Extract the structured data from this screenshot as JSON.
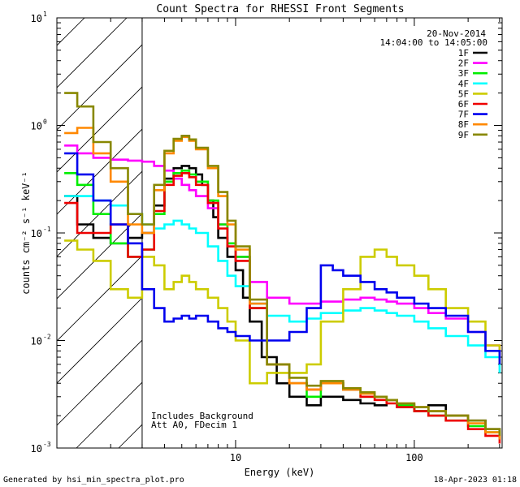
{
  "chart_data": {
    "type": "line",
    "title": "Count Spectra for RHESSI Front Segments",
    "xlabel": "Energy (keV)",
    "ylabel": "counts cm⁻² s⁻¹ keV⁻¹",
    "xscale": "log",
    "yscale": "log",
    "xlim": [
      1.0,
      310
    ],
    "ylim": [
      0.001,
      10
    ],
    "x_major_ticks": [
      {
        "value": 10,
        "label": "10"
      },
      {
        "value": 100,
        "label": "100"
      }
    ],
    "y_major_ticks": [
      {
        "value": 0.001,
        "base": "10",
        "exp": "-3"
      },
      {
        "value": 0.01,
        "base": "10",
        "exp": "-2"
      },
      {
        "value": 0.1,
        "base": "10",
        "exp": "-1"
      },
      {
        "value": 1,
        "base": "10",
        "exp": "0"
      },
      {
        "value": 10,
        "base": "10",
        "exp": "1"
      }
    ],
    "date_annotation": "20-Nov-2014",
    "time_annotation": "14:04:00 to 14:05:00",
    "notes": [
      "Includes Background",
      "Att A0, FDecim 1"
    ],
    "attenuator_region_upper_keV": 3.0,
    "series": [
      {
        "name": "1F",
        "color": "#000000",
        "x": [
          1.1,
          1.3,
          1.6,
          2.0,
          2.5,
          3.0,
          3.5,
          4.0,
          4.5,
          5.0,
          5.5,
          6.0,
          6.5,
          7.0,
          7.5,
          8.0,
          9.0,
          10,
          11,
          12,
          14,
          17,
          20,
          25,
          30,
          40,
          50,
          60,
          70,
          80,
          100,
          120,
          150,
          200,
          250,
          300
        ],
        "y": [
          0.22,
          0.12,
          0.09,
          0.08,
          0.09,
          0.1,
          0.18,
          0.32,
          0.4,
          0.42,
          0.4,
          0.35,
          0.28,
          0.2,
          0.14,
          0.09,
          0.06,
          0.045,
          0.025,
          0.015,
          0.007,
          0.004,
          0.003,
          0.0025,
          0.003,
          0.0028,
          0.0026,
          0.0025,
          0.0028,
          0.0024,
          0.0022,
          0.0025,
          0.002,
          0.0018,
          0.0015,
          0.0012
        ]
      },
      {
        "name": "2F",
        "color": "#ff00ff",
        "x": [
          1.1,
          1.3,
          1.6,
          2.0,
          2.5,
          3.0,
          3.5,
          4.0,
          4.5,
          5.0,
          5.5,
          6.0,
          7.0,
          8.0,
          9.0,
          10,
          12,
          15,
          20,
          25,
          30,
          40,
          50,
          60,
          70,
          80,
          100,
          120,
          150,
          200,
          250,
          300
        ],
        "y": [
          0.65,
          0.55,
          0.5,
          0.48,
          0.47,
          0.46,
          0.42,
          0.38,
          0.32,
          0.28,
          0.25,
          0.22,
          0.17,
          0.12,
          0.08,
          0.06,
          0.035,
          0.025,
          0.022,
          0.022,
          0.023,
          0.024,
          0.025,
          0.024,
          0.023,
          0.022,
          0.02,
          0.018,
          0.016,
          0.012,
          0.009,
          0.007
        ]
      },
      {
        "name": "3F",
        "color": "#00ee00",
        "x": [
          1.1,
          1.3,
          1.6,
          2.0,
          2.5,
          3.0,
          3.5,
          4.0,
          4.5,
          5.0,
          5.5,
          6.0,
          7.0,
          8.0,
          9.0,
          10,
          12,
          15,
          20,
          25,
          30,
          40,
          50,
          60,
          70,
          80,
          100,
          120,
          150,
          200,
          250,
          300
        ],
        "y": [
          0.36,
          0.28,
          0.15,
          0.08,
          0.06,
          0.07,
          0.15,
          0.3,
          0.36,
          0.38,
          0.35,
          0.3,
          0.2,
          0.12,
          0.08,
          0.06,
          0.02,
          0.006,
          0.004,
          0.003,
          0.004,
          0.0035,
          0.003,
          0.003,
          0.0028,
          0.0025,
          0.0022,
          0.002,
          0.0018,
          0.0016,
          0.0014,
          0.0012
        ]
      },
      {
        "name": "4F",
        "color": "#00ffff",
        "x": [
          1.1,
          1.3,
          1.6,
          2.0,
          2.5,
          3.0,
          3.5,
          4.0,
          4.5,
          5.0,
          5.5,
          6.0,
          7.0,
          8.0,
          9.0,
          10,
          12,
          15,
          20,
          25,
          30,
          40,
          50,
          60,
          70,
          80,
          100,
          120,
          150,
          200,
          250,
          300
        ],
        "y": [
          0.22,
          0.22,
          0.2,
          0.18,
          0.15,
          0.12,
          0.11,
          0.12,
          0.13,
          0.12,
          0.11,
          0.1,
          0.075,
          0.055,
          0.04,
          0.032,
          0.022,
          0.017,
          0.015,
          0.016,
          0.018,
          0.019,
          0.02,
          0.019,
          0.018,
          0.017,
          0.015,
          0.013,
          0.011,
          0.009,
          0.007,
          0.005
        ]
      },
      {
        "name": "5F",
        "color": "#cccc00",
        "x": [
          1.1,
          1.3,
          1.6,
          2.0,
          2.5,
          3.0,
          3.5,
          4.0,
          4.5,
          5.0,
          5.5,
          6.0,
          7.0,
          8.0,
          9.0,
          10,
          12,
          15,
          20,
          25,
          30,
          40,
          50,
          60,
          70,
          80,
          100,
          120,
          150,
          200,
          250,
          300
        ],
        "y": [
          0.085,
          0.07,
          0.055,
          0.03,
          0.025,
          0.06,
          0.05,
          0.03,
          0.035,
          0.04,
          0.035,
          0.03,
          0.025,
          0.02,
          0.015,
          0.01,
          0.004,
          0.005,
          0.005,
          0.006,
          0.015,
          0.03,
          0.06,
          0.07,
          0.06,
          0.05,
          0.04,
          0.03,
          0.02,
          0.015,
          0.009,
          0.006
        ]
      },
      {
        "name": "6F",
        "color": "#ee0000",
        "x": [
          1.1,
          1.3,
          1.6,
          2.0,
          2.5,
          3.0,
          3.5,
          4.0,
          4.5,
          5.0,
          5.5,
          6.0,
          7.0,
          8.0,
          9.0,
          10,
          12,
          15,
          20,
          25,
          30,
          40,
          50,
          60,
          70,
          80,
          100,
          120,
          150,
          200,
          250,
          300
        ],
        "y": [
          0.19,
          0.1,
          0.1,
          0.12,
          0.06,
          0.07,
          0.16,
          0.28,
          0.34,
          0.36,
          0.33,
          0.28,
          0.19,
          0.11,
          0.075,
          0.055,
          0.02,
          0.006,
          0.004,
          0.0035,
          0.004,
          0.0035,
          0.003,
          0.0028,
          0.0026,
          0.0024,
          0.0022,
          0.002,
          0.0018,
          0.0015,
          0.0013,
          0.0011
        ]
      },
      {
        "name": "7F",
        "color": "#0000ee",
        "x": [
          1.1,
          1.3,
          1.6,
          2.0,
          2.5,
          3.0,
          3.5,
          4.0,
          4.5,
          5.0,
          5.5,
          6.0,
          7.0,
          8.0,
          9.0,
          10,
          12,
          15,
          20,
          25,
          30,
          35,
          40,
          50,
          60,
          70,
          80,
          100,
          120,
          150,
          200,
          250,
          300
        ],
        "y": [
          0.55,
          0.35,
          0.2,
          0.12,
          0.08,
          0.03,
          0.02,
          0.015,
          0.016,
          0.017,
          0.016,
          0.017,
          0.015,
          0.013,
          0.012,
          0.011,
          0.01,
          0.01,
          0.012,
          0.02,
          0.05,
          0.045,
          0.04,
          0.035,
          0.03,
          0.028,
          0.025,
          0.022,
          0.02,
          0.017,
          0.012,
          0.008,
          0.006
        ]
      },
      {
        "name": "8F",
        "color": "#ff8800",
        "x": [
          1.1,
          1.3,
          1.6,
          2.0,
          2.5,
          3.0,
          3.5,
          4.0,
          4.5,
          5.0,
          5.5,
          6.0,
          7.0,
          8.0,
          9.0,
          10,
          12,
          15,
          20,
          25,
          30,
          40,
          50,
          60,
          70,
          80,
          100,
          120,
          150,
          200,
          250,
          300
        ],
        "y": [
          0.85,
          0.95,
          0.55,
          0.3,
          0.12,
          0.1,
          0.25,
          0.55,
          0.72,
          0.78,
          0.72,
          0.6,
          0.4,
          0.22,
          0.12,
          0.07,
          0.022,
          0.006,
          0.004,
          0.0035,
          0.004,
          0.0035,
          0.0032,
          0.003,
          0.0028,
          0.0026,
          0.0024,
          0.0022,
          0.002,
          0.0017,
          0.0014,
          0.0012
        ]
      },
      {
        "name": "9F",
        "color": "#888800",
        "x": [
          1.1,
          1.3,
          1.6,
          2.0,
          2.5,
          3.0,
          3.5,
          4.0,
          4.5,
          5.0,
          5.5,
          6.0,
          7.0,
          8.0,
          9.0,
          10,
          12,
          15,
          20,
          25,
          30,
          40,
          50,
          60,
          70,
          80,
          100,
          120,
          150,
          200,
          250,
          300
        ],
        "y": [
          2.0,
          1.5,
          0.7,
          0.4,
          0.15,
          0.12,
          0.28,
          0.58,
          0.75,
          0.8,
          0.74,
          0.62,
          0.42,
          0.24,
          0.13,
          0.075,
          0.024,
          0.006,
          0.0045,
          0.0038,
          0.0042,
          0.0036,
          0.0033,
          0.003,
          0.0028,
          0.0026,
          0.0024,
          0.0022,
          0.002,
          0.0018,
          0.0015,
          0.0013
        ]
      }
    ]
  },
  "footer": {
    "generated_by": "Generated by hsi_min_spectra_plot.pro",
    "timestamp": "18-Apr-2023 01:18"
  }
}
